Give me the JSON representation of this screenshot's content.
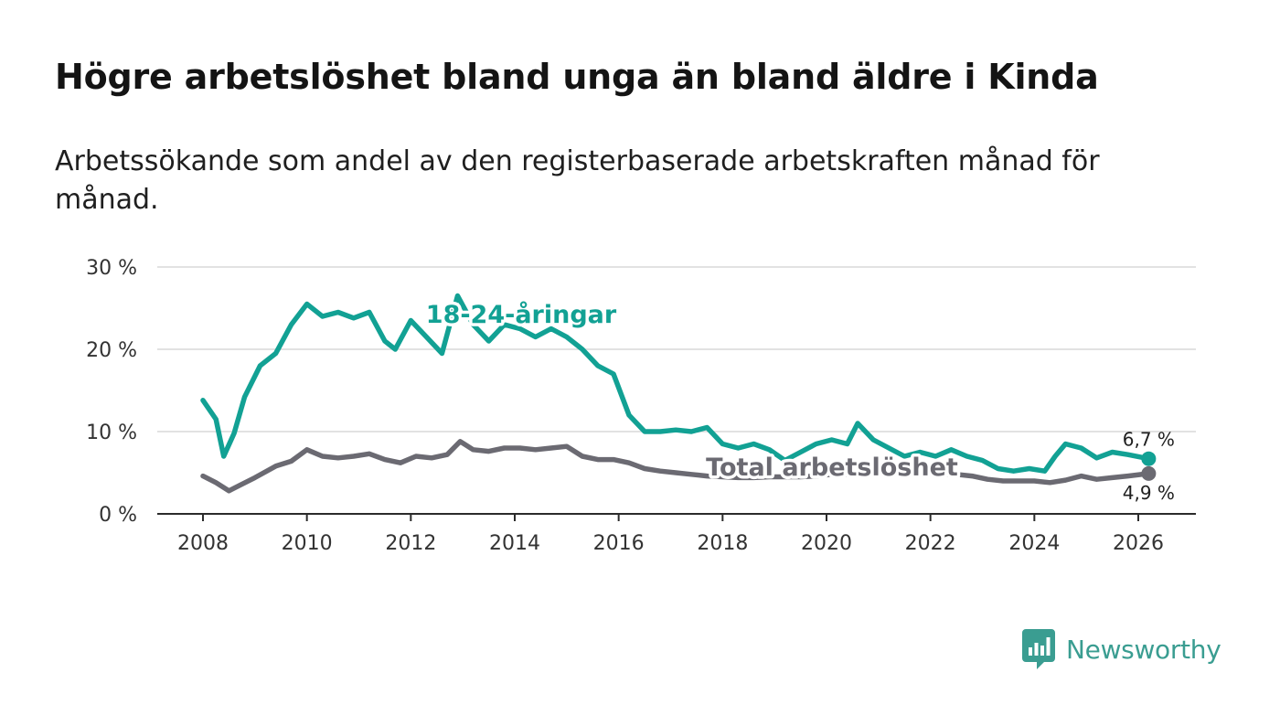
{
  "title": "Högre arbetslöshet bland unga än bland äldre i Kinda",
  "subtitle": "Arbetssökande som andel av den registerbaserade arbetskraften månad för månad.",
  "brand": {
    "name": "Newsworthy",
    "color": "#3a9d91"
  },
  "chart_data": {
    "type": "line",
    "title": "",
    "xlabel": "",
    "ylabel": "",
    "xlim": [
      2007.1,
      2027.1
    ],
    "ylim": [
      0,
      30
    ],
    "x_ticks": [
      2008,
      2010,
      2012,
      2014,
      2016,
      2018,
      2020,
      2022,
      2024,
      2026
    ],
    "x_tick_labels": [
      "2008",
      "2010",
      "2012",
      "2014",
      "2016",
      "2018",
      "2020",
      "2022",
      "2024",
      "2026"
    ],
    "y_ticks": [
      0,
      10,
      20,
      30
    ],
    "y_tick_labels": [
      "0 %",
      "10 %",
      "20 %",
      "30 %"
    ],
    "grid": true,
    "series": [
      {
        "name": "18-24-åringar",
        "color": "#12a194",
        "end_label": "6,7 %",
        "x": [
          2008.0,
          2008.25,
          2008.4,
          2008.6,
          2008.8,
          2009.1,
          2009.4,
          2009.7,
          2010.0,
          2010.3,
          2010.6,
          2010.9,
          2011.2,
          2011.5,
          2011.7,
          2012.0,
          2012.3,
          2012.6,
          2012.9,
          2013.2,
          2013.5,
          2013.8,
          2014.1,
          2014.4,
          2014.7,
          2015.0,
          2015.3,
          2015.6,
          2015.9,
          2016.2,
          2016.5,
          2016.8,
          2017.1,
          2017.4,
          2017.7,
          2018.0,
          2018.3,
          2018.6,
          2018.9,
          2019.2,
          2019.5,
          2019.8,
          2020.1,
          2020.4,
          2020.6,
          2020.9,
          2021.2,
          2021.5,
          2021.8,
          2022.1,
          2022.4,
          2022.7,
          2023.0,
          2023.3,
          2023.6,
          2023.9,
          2024.2,
          2024.4,
          2024.6,
          2024.9,
          2025.2,
          2025.5,
          2025.8,
          2026.2
        ],
        "values": [
          13.8,
          11.5,
          7.0,
          9.8,
          14.2,
          18.0,
          19.5,
          23.0,
          25.5,
          24.0,
          24.5,
          23.8,
          24.5,
          21.0,
          20.0,
          23.5,
          21.5,
          19.5,
          26.5,
          23.0,
          21.0,
          23.0,
          22.5,
          21.5,
          22.5,
          21.5,
          20.0,
          18.0,
          17.0,
          12.0,
          10.0,
          10.0,
          10.2,
          10.0,
          10.5,
          8.5,
          8.0,
          8.5,
          7.8,
          6.5,
          7.5,
          8.5,
          9.0,
          8.5,
          11.0,
          9.0,
          8.0,
          7.0,
          7.5,
          7.0,
          7.8,
          7.0,
          6.5,
          5.5,
          5.2,
          5.5,
          5.2,
          7.0,
          8.5,
          8.0,
          6.8,
          7.5,
          7.2,
          6.7
        ]
      },
      {
        "name": "Total arbetslöshet",
        "color": "#6b6a72",
        "end_label": "4,9 %",
        "x": [
          2008.0,
          2008.25,
          2008.5,
          2008.75,
          2009.0,
          2009.4,
          2009.7,
          2010.0,
          2010.3,
          2010.6,
          2010.9,
          2011.2,
          2011.5,
          2011.8,
          2012.1,
          2012.4,
          2012.7,
          2012.95,
          2013.2,
          2013.5,
          2013.8,
          2014.1,
          2014.4,
          2014.7,
          2015.0,
          2015.3,
          2015.6,
          2015.9,
          2016.2,
          2016.5,
          2016.8,
          2017.1,
          2017.4,
          2017.7,
          2018.0,
          2018.3,
          2018.6,
          2018.9,
          2019.2,
          2019.5,
          2019.8,
          2020.1,
          2020.4,
          2020.7,
          2021.0,
          2021.3,
          2021.6,
          2021.9,
          2022.2,
          2022.5,
          2022.8,
          2023.1,
          2023.4,
          2023.7,
          2024.0,
          2024.3,
          2024.6,
          2024.9,
          2025.2,
          2025.5,
          2025.8,
          2026.2
        ],
        "values": [
          4.6,
          3.8,
          2.8,
          3.6,
          4.4,
          5.8,
          6.4,
          7.8,
          7.0,
          6.8,
          7.0,
          7.3,
          6.6,
          6.2,
          7.0,
          6.8,
          7.2,
          8.8,
          7.8,
          7.6,
          8.0,
          8.0,
          7.8,
          8.0,
          8.2,
          7.0,
          6.6,
          6.6,
          6.2,
          5.5,
          5.2,
          5.0,
          4.8,
          4.6,
          4.5,
          4.4,
          4.4,
          4.5,
          4.5,
          4.5,
          4.6,
          4.8,
          4.8,
          5.0,
          5.0,
          4.9,
          4.9,
          4.9,
          4.8,
          4.8,
          4.6,
          4.2,
          4.0,
          4.0,
          4.0,
          3.8,
          4.1,
          4.6,
          4.2,
          4.4,
          4.6,
          4.9
        ]
      }
    ]
  }
}
